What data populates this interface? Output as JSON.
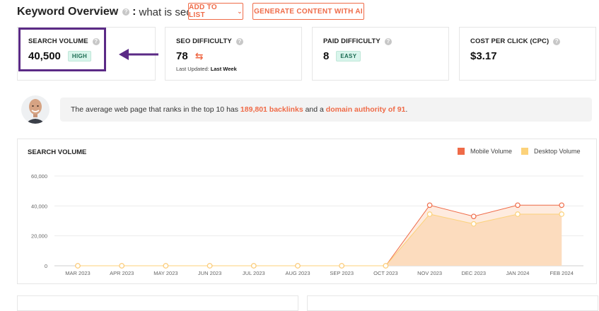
{
  "header": {
    "title": "Keyword Overview",
    "colon": ":",
    "query": "what is seo",
    "add_to_list_label": "ADD TO LIST",
    "generate_label": "GENERATE CONTENT WITH AI"
  },
  "cards": {
    "search_volume": {
      "label": "SEARCH VOLUME",
      "value": "40,500",
      "badge": "HIGH"
    },
    "seo_difficulty": {
      "label": "SEO DIFFICULTY",
      "value": "78",
      "sub_label": "Last Updated:",
      "sub_value": "Last Week"
    },
    "paid_difficulty": {
      "label": "PAID DIFFICULTY",
      "value": "8",
      "badge": "EASY"
    },
    "cpc": {
      "label": "COST PER CLICK (CPC)",
      "value": "$3.17"
    }
  },
  "insight": {
    "prefix": "The average web page that ranks in the top 10 has ",
    "backlinks": "189,801 backlinks",
    "middle": " and a ",
    "authority": "domain authority of 91",
    "suffix": "."
  },
  "icons": {
    "help": "help-circle-icon",
    "chevron": "chevron-down-icon",
    "swap": "swap-arrows-icon",
    "arrow": "left-arrow-icon"
  },
  "colors": {
    "accent": "#ef6b48",
    "highlight": "#5b2a86",
    "mobile": "#ef6b48",
    "desktop": "#fcd27a"
  },
  "chart_data": {
    "type": "area",
    "title": "SEARCH VOLUME",
    "categories": [
      "MAR 2023",
      "APR 2023",
      "MAY 2023",
      "JUN 2023",
      "JUL 2023",
      "AUG 2023",
      "SEP 2023",
      "OCT 2023",
      "NOV 2023",
      "DEC 2023",
      "JAN 2024",
      "FEB 2024"
    ],
    "series": [
      {
        "name": "Mobile Volume",
        "values": [
          0,
          0,
          0,
          0,
          0,
          0,
          0,
          0,
          40500,
          33000,
          40500,
          40500
        ]
      },
      {
        "name": "Desktop Volume",
        "values": [
          0,
          0,
          0,
          0,
          0,
          0,
          0,
          0,
          34500,
          28000,
          34500,
          34500
        ]
      }
    ],
    "y_ticks": [
      "0",
      "20,000",
      "40,000",
      "60,000"
    ],
    "ylim": [
      0,
      60000
    ],
    "grid": true,
    "legend": "top-right"
  }
}
